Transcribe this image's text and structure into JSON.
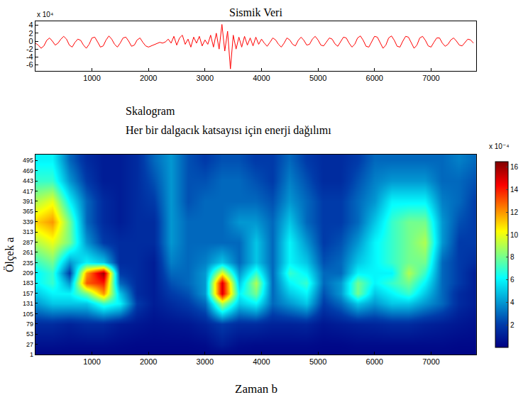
{
  "chart_data": [
    {
      "type": "line",
      "title": "Sismik Veri",
      "annotations": [
        "x 10⁴"
      ],
      "color": "#ff0000",
      "x": [
        0,
        50,
        100,
        150,
        200,
        250,
        300,
        350,
        400,
        450,
        500,
        550,
        600,
        650,
        700,
        750,
        800,
        850,
        900,
        950,
        1000,
        1050,
        1100,
        1150,
        1200,
        1250,
        1300,
        1350,
        1400,
        1450,
        1500,
        1550,
        1600,
        1650,
        1700,
        1750,
        1800,
        1850,
        1900,
        1950,
        2000,
        2050,
        2100,
        2150,
        2200,
        2250,
        2300,
        2350,
        2400,
        2450,
        2500,
        2550,
        2600,
        2650,
        2700,
        2750,
        2800,
        2850,
        2900,
        2950,
        3000,
        3050,
        3100,
        3150,
        3200,
        3250,
        3300,
        3350,
        3400,
        3450,
        3500,
        3550,
        3600,
        3650,
        3700,
        3750,
        3800,
        3850,
        3900,
        3950,
        4000,
        4050,
        4100,
        4150,
        4200,
        4250,
        4300,
        4350,
        4400,
        4450,
        4500,
        4550,
        4600,
        4650,
        4700,
        4750,
        4800,
        4850,
        4900,
        4950,
        5000,
        5050,
        5100,
        5150,
        5200,
        5250,
        5300,
        5350,
        5400,
        5450,
        5500,
        5550,
        5600,
        5650,
        5700,
        5750,
        5800,
        5850,
        5900,
        5950,
        6000,
        6050,
        6100,
        6150,
        6200,
        6250,
        6300,
        6350,
        6400,
        6450,
        6500,
        6550,
        6600,
        6650,
        6700,
        6750,
        6800,
        6850,
        6900,
        6950,
        7000,
        7050,
        7100,
        7150,
        7200,
        7250,
        7300,
        7350,
        7400,
        7450,
        7500,
        7550,
        7600,
        7650,
        7700,
        7750
      ],
      "values": [
        -0.5,
        -1,
        -1.8,
        -1.2,
        0.2,
        0.8,
        0,
        -1,
        -0.5,
        0.5,
        1.2,
        0.5,
        -1,
        -1.5,
        -0.3,
        0.5,
        0.2,
        -1,
        -1.8,
        -0.8,
        0.8,
        1,
        -0.2,
        -1.5,
        -1.2,
        0.3,
        1.3,
        0.5,
        -0.8,
        -1.5,
        -0.5,
        0.8,
        1,
        0,
        -1.3,
        -1,
        0.3,
        0.8,
        -0.3,
        -1.2,
        -1.5,
        -1.2,
        -0.8,
        -0.5,
        -0.3,
        -0.5,
        -0.2,
        0.5,
        -0.5,
        1.2,
        -1,
        0.8,
        1.5,
        -0.8,
        0.5,
        -1.5,
        1,
        -0.5,
        1.2,
        -1.2,
        0.3,
        -0.8,
        1.5,
        -1.5,
        2,
        -2,
        4.2,
        -2.5,
        2.5,
        -7,
        1.5,
        -2,
        1,
        -1.5,
        1.2,
        -1,
        0.8,
        -1.2,
        1,
        -0.8,
        0.5,
        -0.5,
        -1.3,
        -0.3,
        0.8,
        0.3,
        -0.8,
        -1.5,
        -0.5,
        0.8,
        0.3,
        -0.8,
        -1.2,
        0.2,
        1,
        0.2,
        -1,
        -0.8,
        0.5,
        1.2,
        0.3,
        -1,
        -1.2,
        -0.2,
        0.8,
        0.5,
        -0.7,
        -1.3,
        -0.2,
        1,
        0.8,
        -0.5,
        -1.5,
        -0.8,
        0.8,
        1.3,
        0.2,
        -1.3,
        -1.5,
        0,
        1.2,
        1,
        -0.5,
        -1.8,
        -1,
        0.8,
        1.3,
        0.2,
        -1.3,
        -1.5,
        0,
        1.2,
        1,
        -0.5,
        -1.8,
        -1,
        0.8,
        1.2,
        0.2,
        -1.2,
        -1.5,
        -0.3,
        0.8,
        0.8,
        -0.5,
        -1.3,
        -0.8,
        0.3,
        0.8,
        0,
        -1,
        -1.2,
        -0.3,
        0.5,
        0.3,
        -0.5
      ],
      "xlim": [
        0,
        7800
      ],
      "xticks": [
        1000,
        2000,
        3000,
        4000,
        5000,
        6000,
        7000
      ],
      "ylim": [
        -7.5,
        5
      ],
      "yticks": [
        -6,
        -4,
        -2,
        0,
        2,
        4
      ]
    },
    {
      "type": "heatmap",
      "title": "Skalogram",
      "subtitle": "Her bir dalgacık katsayısı için enerji dağılımı",
      "x_label": "Zaman b",
      "y_label": "Ölçek a",
      "color": "Jet",
      "x": [
        0,
        300,
        600,
        900,
        1200,
        1500,
        1800,
        2100,
        2400,
        2700,
        3000,
        3300,
        3600,
        3900,
        4200,
        4500,
        4800,
        5100,
        5400,
        5700,
        6000,
        6300,
        6600,
        6900,
        7200,
        7500,
        7800
      ],
      "y": [
        1,
        27,
        79,
        131,
        157,
        183,
        209,
        235,
        287,
        339,
        391,
        443,
        495
      ],
      "cells": [
        [
          0.2,
          0.2,
          0.2,
          0.2,
          0.2,
          0.2,
          0.2,
          0.2,
          0.2,
          0.2,
          0.2,
          0.2,
          0.2,
          0.2,
          0.2,
          0.2,
          0.2,
          0.2,
          0.2,
          0.2,
          0.2,
          0.2,
          0.2,
          0.2,
          0.2,
          0.2,
          0.2
        ],
        [
          0.6,
          0.6,
          0.5,
          0.5,
          0.5,
          0.4,
          0.3,
          0.3,
          0.3,
          0.3,
          0.4,
          1.0,
          0.5,
          0.4,
          0.4,
          0.4,
          0.4,
          0.3,
          0.3,
          0.4,
          0.4,
          0.4,
          0.4,
          0.4,
          0.4,
          0.3,
          0.3
        ],
        [
          1.5,
          1.5,
          1.2,
          1.5,
          1.5,
          1,
          0.8,
          0.6,
          0.7,
          0.8,
          1.2,
          2,
          1.5,
          1.5,
          1.2,
          1.2,
          1.3,
          0.8,
          1,
          1.2,
          1.3,
          1.5,
          1.5,
          1.2,
          1,
          0.8,
          0.6
        ],
        [
          4,
          5,
          5,
          5,
          7,
          6,
          2,
          1,
          1.5,
          2,
          3,
          9,
          5,
          6,
          3,
          4,
          5,
          2,
          3,
          5,
          4,
          5,
          5,
          4,
          3,
          1.5,
          1
        ],
        [
          5,
          6,
          6,
          8,
          12,
          5,
          1.5,
          1,
          2,
          2.5,
          4,
          15,
          6,
          8,
          3,
          5,
          6,
          2.5,
          4,
          8,
          5,
          6,
          7,
          5,
          3,
          1.5,
          1
        ],
        [
          6,
          7,
          4,
          13,
          14,
          3,
          1.5,
          1,
          2.5,
          3,
          4,
          15,
          5,
          9,
          3,
          6,
          7,
          3,
          4,
          8,
          6,
          7,
          8,
          6,
          3,
          2,
          1
        ],
        [
          6,
          7,
          2,
          12,
          16,
          2,
          1.5,
          1,
          3,
          3,
          4,
          10,
          4,
          7,
          3,
          7,
          6,
          3,
          3,
          6,
          6,
          6,
          9,
          7,
          3,
          2,
          1
        ],
        [
          7,
          8,
          4,
          6,
          5,
          1.5,
          1.5,
          1,
          3.5,
          3,
          3.5,
          5,
          3,
          5,
          3,
          6,
          5,
          2.5,
          3,
          5,
          6,
          7,
          8,
          8,
          3,
          2,
          1.5
        ],
        [
          9,
          10,
          8,
          4,
          2,
          1.5,
          1.5,
          1.5,
          4,
          3,
          3,
          3,
          3,
          5,
          3,
          6,
          4,
          2,
          2.5,
          4,
          6,
          7,
          8,
          9,
          4,
          2,
          2
        ],
        [
          11,
          12,
          8,
          3,
          1.5,
          1,
          1.5,
          1.5,
          4,
          3,
          3,
          3,
          4,
          4,
          3,
          5,
          3,
          2,
          2,
          3,
          5,
          7,
          8,
          8,
          4,
          2.5,
          2
        ],
        [
          9,
          10,
          6,
          3,
          1.5,
          1,
          1.5,
          2,
          4,
          2.5,
          3,
          3,
          3,
          3,
          2.5,
          4,
          3,
          2,
          2,
          3,
          4,
          6,
          6,
          6,
          3.5,
          3,
          2
        ],
        [
          7,
          7,
          4,
          2,
          1,
          1,
          1.5,
          2.5,
          4,
          2.5,
          2.5,
          3,
          3,
          2.5,
          2,
          3.5,
          2.5,
          1.5,
          1.5,
          2.5,
          3.5,
          4,
          4,
          4,
          3,
          3,
          2.5
        ],
        [
          6,
          6,
          3,
          1.5,
          1,
          1,
          1.5,
          3,
          4,
          2.5,
          2,
          2.5,
          2.5,
          2,
          2,
          3,
          2,
          1.5,
          1.5,
          2,
          3,
          3,
          3,
          3,
          3,
          3.5,
          3
        ]
      ],
      "xlim": [
        0,
        7800
      ],
      "xticks": [
        1000,
        2000,
        3000,
        4000,
        5000,
        6000,
        7000
      ],
      "ylim": [
        1,
        510
      ],
      "yticks": [
        1,
        27,
        53,
        79,
        105,
        131,
        157,
        183,
        209,
        235,
        261,
        287,
        313,
        339,
        365,
        391,
        417,
        443,
        469,
        495
      ],
      "colorbar": {
        "range": [
          0,
          16.5
        ],
        "ticks": [
          2,
          4,
          6,
          8,
          10,
          12,
          14,
          16
        ],
        "label": "x 10⁻⁴"
      }
    }
  ]
}
